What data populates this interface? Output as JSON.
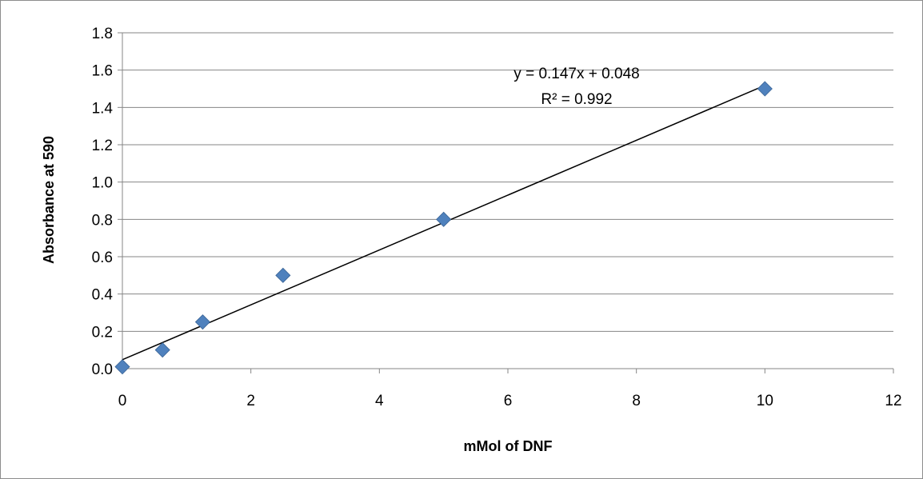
{
  "chart_data": {
    "type": "scatter",
    "title": "",
    "xlabel": "mMol of DNF",
    "ylabel": "Absorbance at 590",
    "xlim": [
      0,
      12
    ],
    "ylim": [
      0,
      1.8
    ],
    "x_ticks": [
      "0",
      "2",
      "4",
      "6",
      "8",
      "10",
      "12"
    ],
    "y_ticks": [
      "0.0",
      "0.2",
      "0.4",
      "0.6",
      "0.8",
      "1.0",
      "1.2",
      "1.4",
      "1.6",
      "1.8"
    ],
    "grid": "horizontal",
    "legend": "none",
    "series": [
      {
        "marker": "diamond",
        "color": "#4F81BD",
        "points": [
          {
            "x": 0,
            "y": 0.01
          },
          {
            "x": 0.625,
            "y": 0.1
          },
          {
            "x": 1.25,
            "y": 0.25
          },
          {
            "x": 2.5,
            "y": 0.5
          },
          {
            "x": 5,
            "y": 0.8
          },
          {
            "x": 10,
            "y": 1.5
          }
        ]
      }
    ],
    "trendline": {
      "type": "linear",
      "slope": 0.147,
      "intercept": 0.048,
      "x_range": [
        0,
        10
      ],
      "color": "#000000"
    },
    "annotations": {
      "equation": "y = 0.147x + 0.048",
      "r_squared": "R² = 0.992"
    }
  }
}
